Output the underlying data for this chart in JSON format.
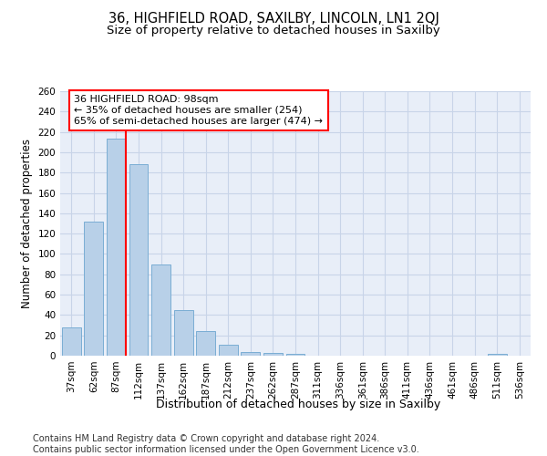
{
  "title_line1": "36, HIGHFIELD ROAD, SAXILBY, LINCOLN, LN1 2QJ",
  "title_line2": "Size of property relative to detached houses in Saxilby",
  "xlabel": "Distribution of detached houses by size in Saxilby",
  "ylabel": "Number of detached properties",
  "bar_labels": [
    "37sqm",
    "62sqm",
    "87sqm",
    "112sqm",
    "137sqm",
    "162sqm",
    "187sqm",
    "212sqm",
    "237sqm",
    "262sqm",
    "287sqm",
    "311sqm",
    "336sqm",
    "361sqm",
    "386sqm",
    "411sqm",
    "436sqm",
    "461sqm",
    "486sqm",
    "511sqm",
    "536sqm"
  ],
  "bar_values": [
    28,
    132,
    213,
    188,
    90,
    45,
    24,
    11,
    4,
    3,
    2,
    0,
    0,
    0,
    0,
    0,
    0,
    0,
    0,
    2,
    0
  ],
  "bar_color": "#b8d0e8",
  "bar_edge_color": "#7aadd4",
  "annotation_title": "36 HIGHFIELD ROAD: 98sqm",
  "annotation_line2": "← 35% of detached houses are smaller (254)",
  "annotation_line3": "65% of semi-detached houses are larger (474) →",
  "ylim": [
    0,
    260
  ],
  "yticks": [
    0,
    20,
    40,
    60,
    80,
    100,
    120,
    140,
    160,
    180,
    200,
    220,
    240,
    260
  ],
  "grid_color": "#c8d4e8",
  "background_color": "#e8eef8",
  "footer_line1": "Contains HM Land Registry data © Crown copyright and database right 2024.",
  "footer_line2": "Contains public sector information licensed under the Open Government Licence v3.0.",
  "title1_fontsize": 10.5,
  "title2_fontsize": 9.5,
  "xlabel_fontsize": 9,
  "ylabel_fontsize": 8.5,
  "tick_fontsize": 7.5,
  "annotation_fontsize": 8,
  "footer_fontsize": 7
}
